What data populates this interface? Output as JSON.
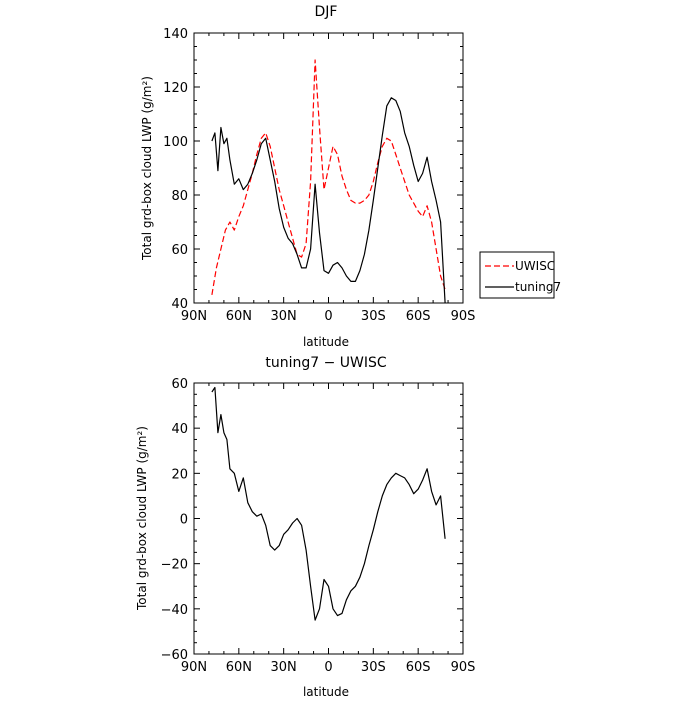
{
  "chart_data": [
    {
      "type": "line",
      "title": "DJF",
      "xlabel": "latitude",
      "ylabel": "Total grd-box cloud LWP (g/m²)",
      "xlim": [
        90,
        -90
      ],
      "ylim": [
        40,
        140
      ],
      "x_ticks": [
        90,
        60,
        30,
        0,
        -30,
        -60,
        -90
      ],
      "x_tick_labels": [
        "90N",
        "60N",
        "30N",
        "0",
        "30S",
        "60S",
        "90S"
      ],
      "y_ticks": [
        40,
        60,
        80,
        100,
        120,
        140
      ],
      "y_tick_labels": [
        "40",
        "60",
        "80",
        "100",
        "120",
        "140"
      ],
      "legend_position": "right-outside",
      "series": [
        {
          "name": "UWISC",
          "color": "#ff0000",
          "dash": "dashed",
          "x": [
            78,
            75,
            72,
            69,
            66,
            63,
            60,
            57,
            54,
            51,
            48,
            45,
            42,
            39,
            36,
            33,
            30,
            27,
            24,
            21,
            18,
            15,
            12,
            9,
            6,
            3,
            0,
            -3,
            -6,
            -9,
            -12,
            -15,
            -18,
            -21,
            -24,
            -27,
            -30,
            -33,
            -36,
            -39,
            -42,
            -45,
            -48,
            -51,
            -54,
            -57,
            -60,
            -63,
            -66,
            -69,
            -72,
            -75,
            -78
          ],
          "y": [
            43,
            53,
            60,
            67,
            70,
            67,
            72,
            76,
            82,
            88,
            95,
            101,
            103,
            98,
            90,
            82,
            76,
            70,
            64,
            58,
            57,
            62,
            85,
            130,
            105,
            82,
            90,
            98,
            95,
            87,
            82,
            78,
            77,
            77,
            78,
            80,
            85,
            92,
            98,
            101,
            100,
            95,
            90,
            85,
            80,
            77,
            74,
            72,
            76,
            70,
            60,
            50,
            45
          ]
        },
        {
          "name": "tuning7",
          "color": "#000000",
          "dash": "solid",
          "x": [
            78,
            76,
            74,
            72,
            70,
            68,
            66,
            63,
            60,
            57,
            54,
            51,
            48,
            45,
            42,
            39,
            36,
            33,
            30,
            27,
            24,
            21,
            18,
            15,
            12,
            9,
            6,
            3,
            0,
            -3,
            -6,
            -9,
            -12,
            -15,
            -18,
            -21,
            -24,
            -27,
            -30,
            -33,
            -36,
            -39,
            -42,
            -45,
            -48,
            -51,
            -54,
            -57,
            -60,
            -63,
            -66,
            -69,
            -72,
            -75,
            -78
          ],
          "y": [
            100,
            103,
            89,
            105,
            99,
            101,
            93,
            84,
            86,
            82,
            84,
            88,
            93,
            99,
            101,
            93,
            85,
            75,
            68,
            64,
            62,
            58,
            53,
            53,
            60,
            84,
            66,
            52,
            51,
            54,
            55,
            53,
            50,
            48,
            48,
            52,
            58,
            67,
            78,
            90,
            102,
            113,
            116,
            115,
            111,
            103,
            98,
            91,
            85,
            88,
            94,
            85,
            78,
            70,
            40
          ]
        }
      ]
    },
    {
      "type": "line",
      "title": "tuning7 − UWISC",
      "xlabel": "latitude",
      "ylabel": "Total grd-box cloud LWP (g/m²)",
      "xlim": [
        90,
        -90
      ],
      "ylim": [
        -60,
        60
      ],
      "x_ticks": [
        90,
        60,
        30,
        0,
        -30,
        -60,
        -90
      ],
      "x_tick_labels": [
        "90N",
        "60N",
        "30N",
        "0",
        "30S",
        "60S",
        "90S"
      ],
      "y_ticks": [
        -60,
        -40,
        -20,
        0,
        20,
        40,
        60
      ],
      "y_tick_labels": [
        "−60",
        "−40",
        "−20",
        "0",
        "20",
        "40",
        "60"
      ],
      "series": [
        {
          "color": "#000000",
          "dash": "solid",
          "x": [
            78,
            76,
            74,
            72,
            70,
            68,
            66,
            63,
            60,
            57,
            54,
            51,
            48,
            45,
            42,
            39,
            36,
            33,
            30,
            27,
            24,
            21,
            18,
            15,
            12,
            9,
            6,
            3,
            0,
            -3,
            -6,
            -9,
            -12,
            -15,
            -18,
            -21,
            -24,
            -27,
            -30,
            -33,
            -36,
            -39,
            -42,
            -45,
            -48,
            -51,
            -54,
            -57,
            -60,
            -63,
            -66,
            -69,
            -72,
            -75,
            -78
          ],
          "y": [
            56,
            58,
            38,
            46,
            38,
            35,
            22,
            20,
            12,
            18,
            7,
            3,
            1,
            2,
            -3,
            -12,
            -14,
            -12,
            -7,
            -5,
            -2,
            0,
            -3,
            -14,
            -30,
            -45,
            -40,
            -27,
            -30,
            -40,
            -43,
            -42,
            -36,
            -32,
            -30,
            -26,
            -20,
            -12,
            -5,
            3,
            10,
            15,
            18,
            20,
            19,
            18,
            15,
            11,
            13,
            17,
            22,
            12,
            6,
            10,
            -9
          ]
        }
      ]
    }
  ]
}
